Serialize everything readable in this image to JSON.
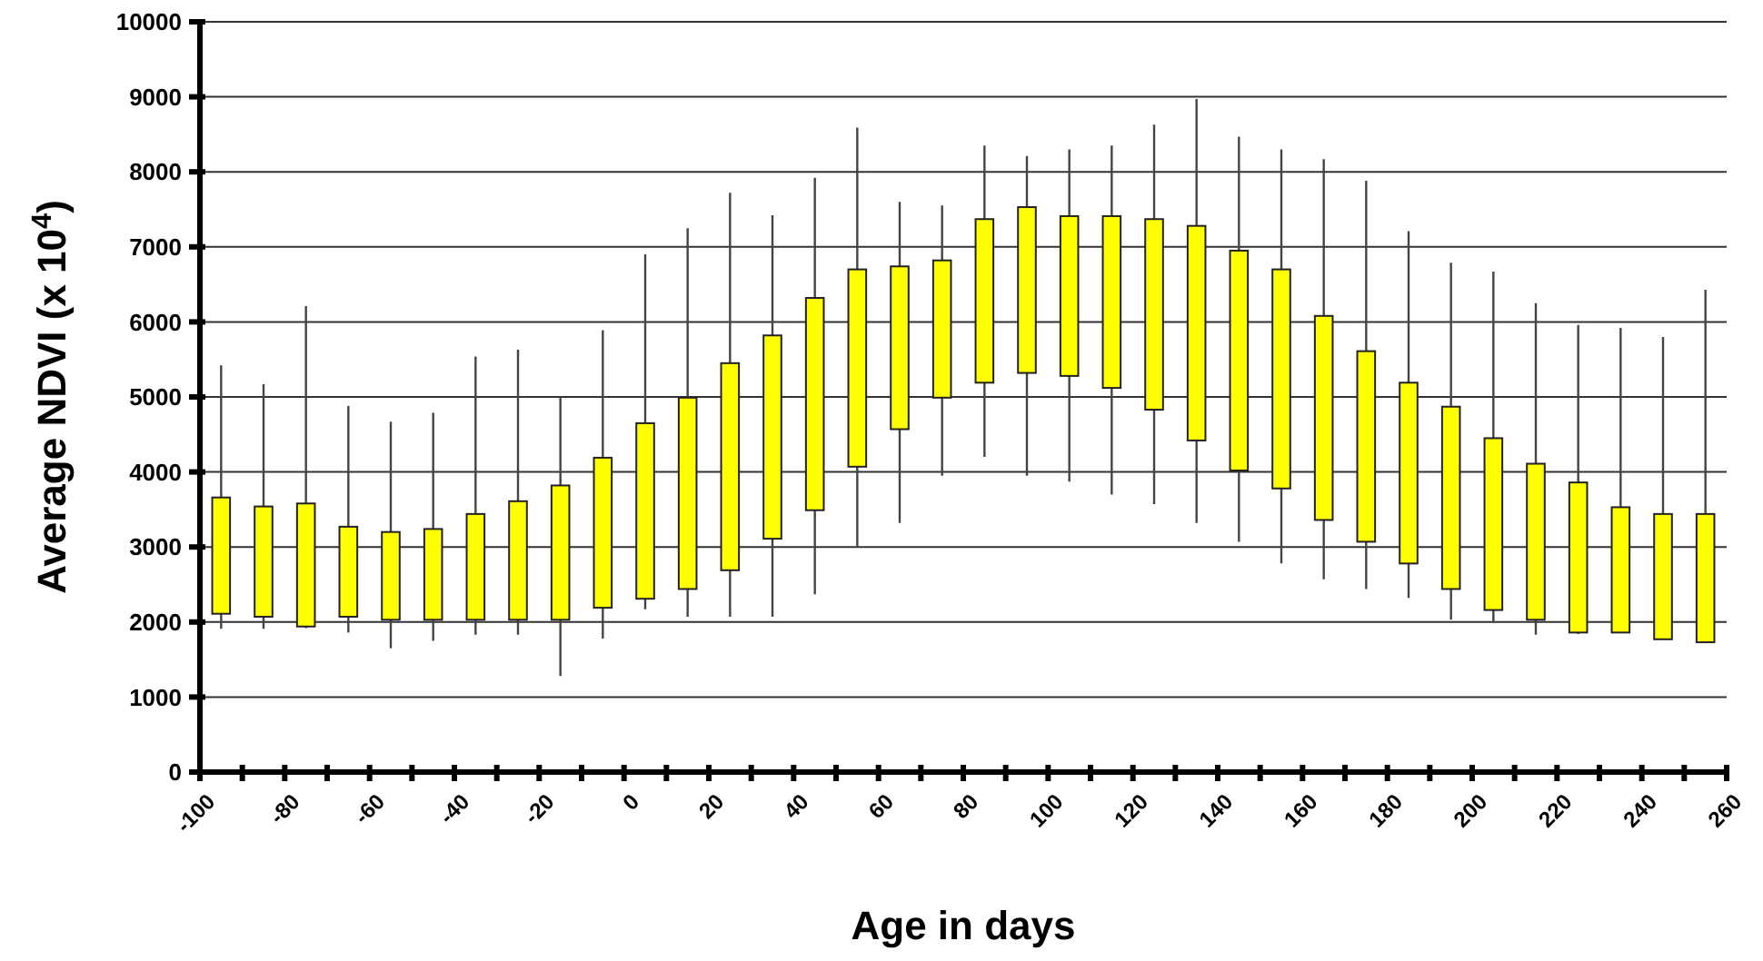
{
  "chart_data": {
    "type": "candlestick",
    "xlabel": "Age in days",
    "ylabel": "Average NDVI (x 10$^{4}$)",
    "color": "#ffff00",
    "grid": "y",
    "x": [
      -95,
      -85,
      -75,
      -65,
      -55,
      -45,
      -35,
      -25,
      -15,
      -5,
      5,
      15,
      25,
      35,
      45,
      55,
      65,
      75,
      85,
      95,
      105,
      115,
      125,
      135,
      145,
      155,
      165,
      175,
      185,
      195,
      205,
      215,
      225,
      235,
      245,
      255
    ],
    "ohlc": [
      [
        2110,
        5420,
        1910,
        3660
      ],
      [
        2070,
        5170,
        1910,
        3540
      ],
      [
        1940,
        6210,
        1920,
        3580
      ],
      [
        2070,
        4880,
        1860,
        3270
      ],
      [
        2030,
        4670,
        1650,
        3200
      ],
      [
        2030,
        4790,
        1750,
        3240
      ],
      [
        2030,
        5540,
        1830,
        3440
      ],
      [
        2030,
        5630,
        1830,
        3610
      ],
      [
        2030,
        5000,
        1280,
        3820
      ],
      [
        2190,
        5890,
        1780,
        4190
      ],
      [
        2310,
        6900,
        2170,
        4650
      ],
      [
        2440,
        7250,
        2070,
        4990
      ],
      [
        2690,
        7720,
        2070,
        5450
      ],
      [
        3110,
        7420,
        2070,
        5820
      ],
      [
        3490,
        7920,
        2370,
        6320
      ],
      [
        4070,
        8590,
        3000,
        6700
      ],
      [
        4570,
        7600,
        3320,
        6740
      ],
      [
        4990,
        7550,
        3950,
        6820
      ],
      [
        5190,
        8350,
        4200,
        7370
      ],
      [
        5320,
        8210,
        3950,
        7530
      ],
      [
        5280,
        8300,
        3870,
        7410
      ],
      [
        5120,
        8350,
        3700,
        7410
      ],
      [
        4830,
        8630,
        3570,
        7370
      ],
      [
        4420,
        8970,
        3320,
        7280
      ],
      [
        4020,
        8470,
        3070,
        6950
      ],
      [
        3780,
        8300,
        2780,
        6700
      ],
      [
        3360,
        8170,
        2570,
        6080
      ],
      [
        3070,
        7880,
        2440,
        5610
      ],
      [
        2780,
        7210,
        2320,
        5190
      ],
      [
        2440,
        6790,
        2030,
        4870
      ],
      [
        2160,
        6670,
        1990,
        4450
      ],
      [
        2030,
        6250,
        1830,
        4110
      ],
      [
        1860,
        5960,
        1840,
        3860
      ],
      [
        1860,
        5920,
        1860,
        3530
      ],
      [
        1770,
        5800,
        1770,
        3440
      ],
      [
        1730,
        6430,
        1730,
        3440
      ]
    ],
    "xlim": [
      -100,
      260
    ],
    "xticks": [
      -100,
      {
        "value": -90,
        "label": null
      },
      -80,
      {
        "value": -70,
        "label": null
      },
      -60,
      {
        "value": -50,
        "label": null
      },
      -40,
      {
        "value": -30,
        "label": null
      },
      -20,
      {
        "value": -10,
        "label": null
      },
      0,
      {
        "value": 10,
        "label": null
      },
      20,
      {
        "value": 30,
        "label": null
      },
      40,
      {
        "value": 50,
        "label": null
      },
      60,
      {
        "value": 70,
        "label": null
      },
      80,
      {
        "value": 90,
        "label": null
      },
      100,
      {
        "value": 110,
        "label": null
      },
      120,
      {
        "value": 130,
        "label": null
      },
      140,
      {
        "value": 150,
        "label": null
      },
      160,
      {
        "value": 170,
        "label": null
      },
      180,
      {
        "value": 190,
        "label": null
      },
      200,
      {
        "value": 210,
        "label": null
      },
      220,
      {
        "value": 230,
        "label": null
      },
      240,
      {
        "value": 250,
        "label": null
      },
      260
    ],
    "ylim": [
      0,
      10000
    ],
    "yticks": [
      0,
      1000,
      2000,
      3000,
      4000,
      5000,
      6000,
      7000,
      8000,
      9000,
      10000
    ]
  }
}
